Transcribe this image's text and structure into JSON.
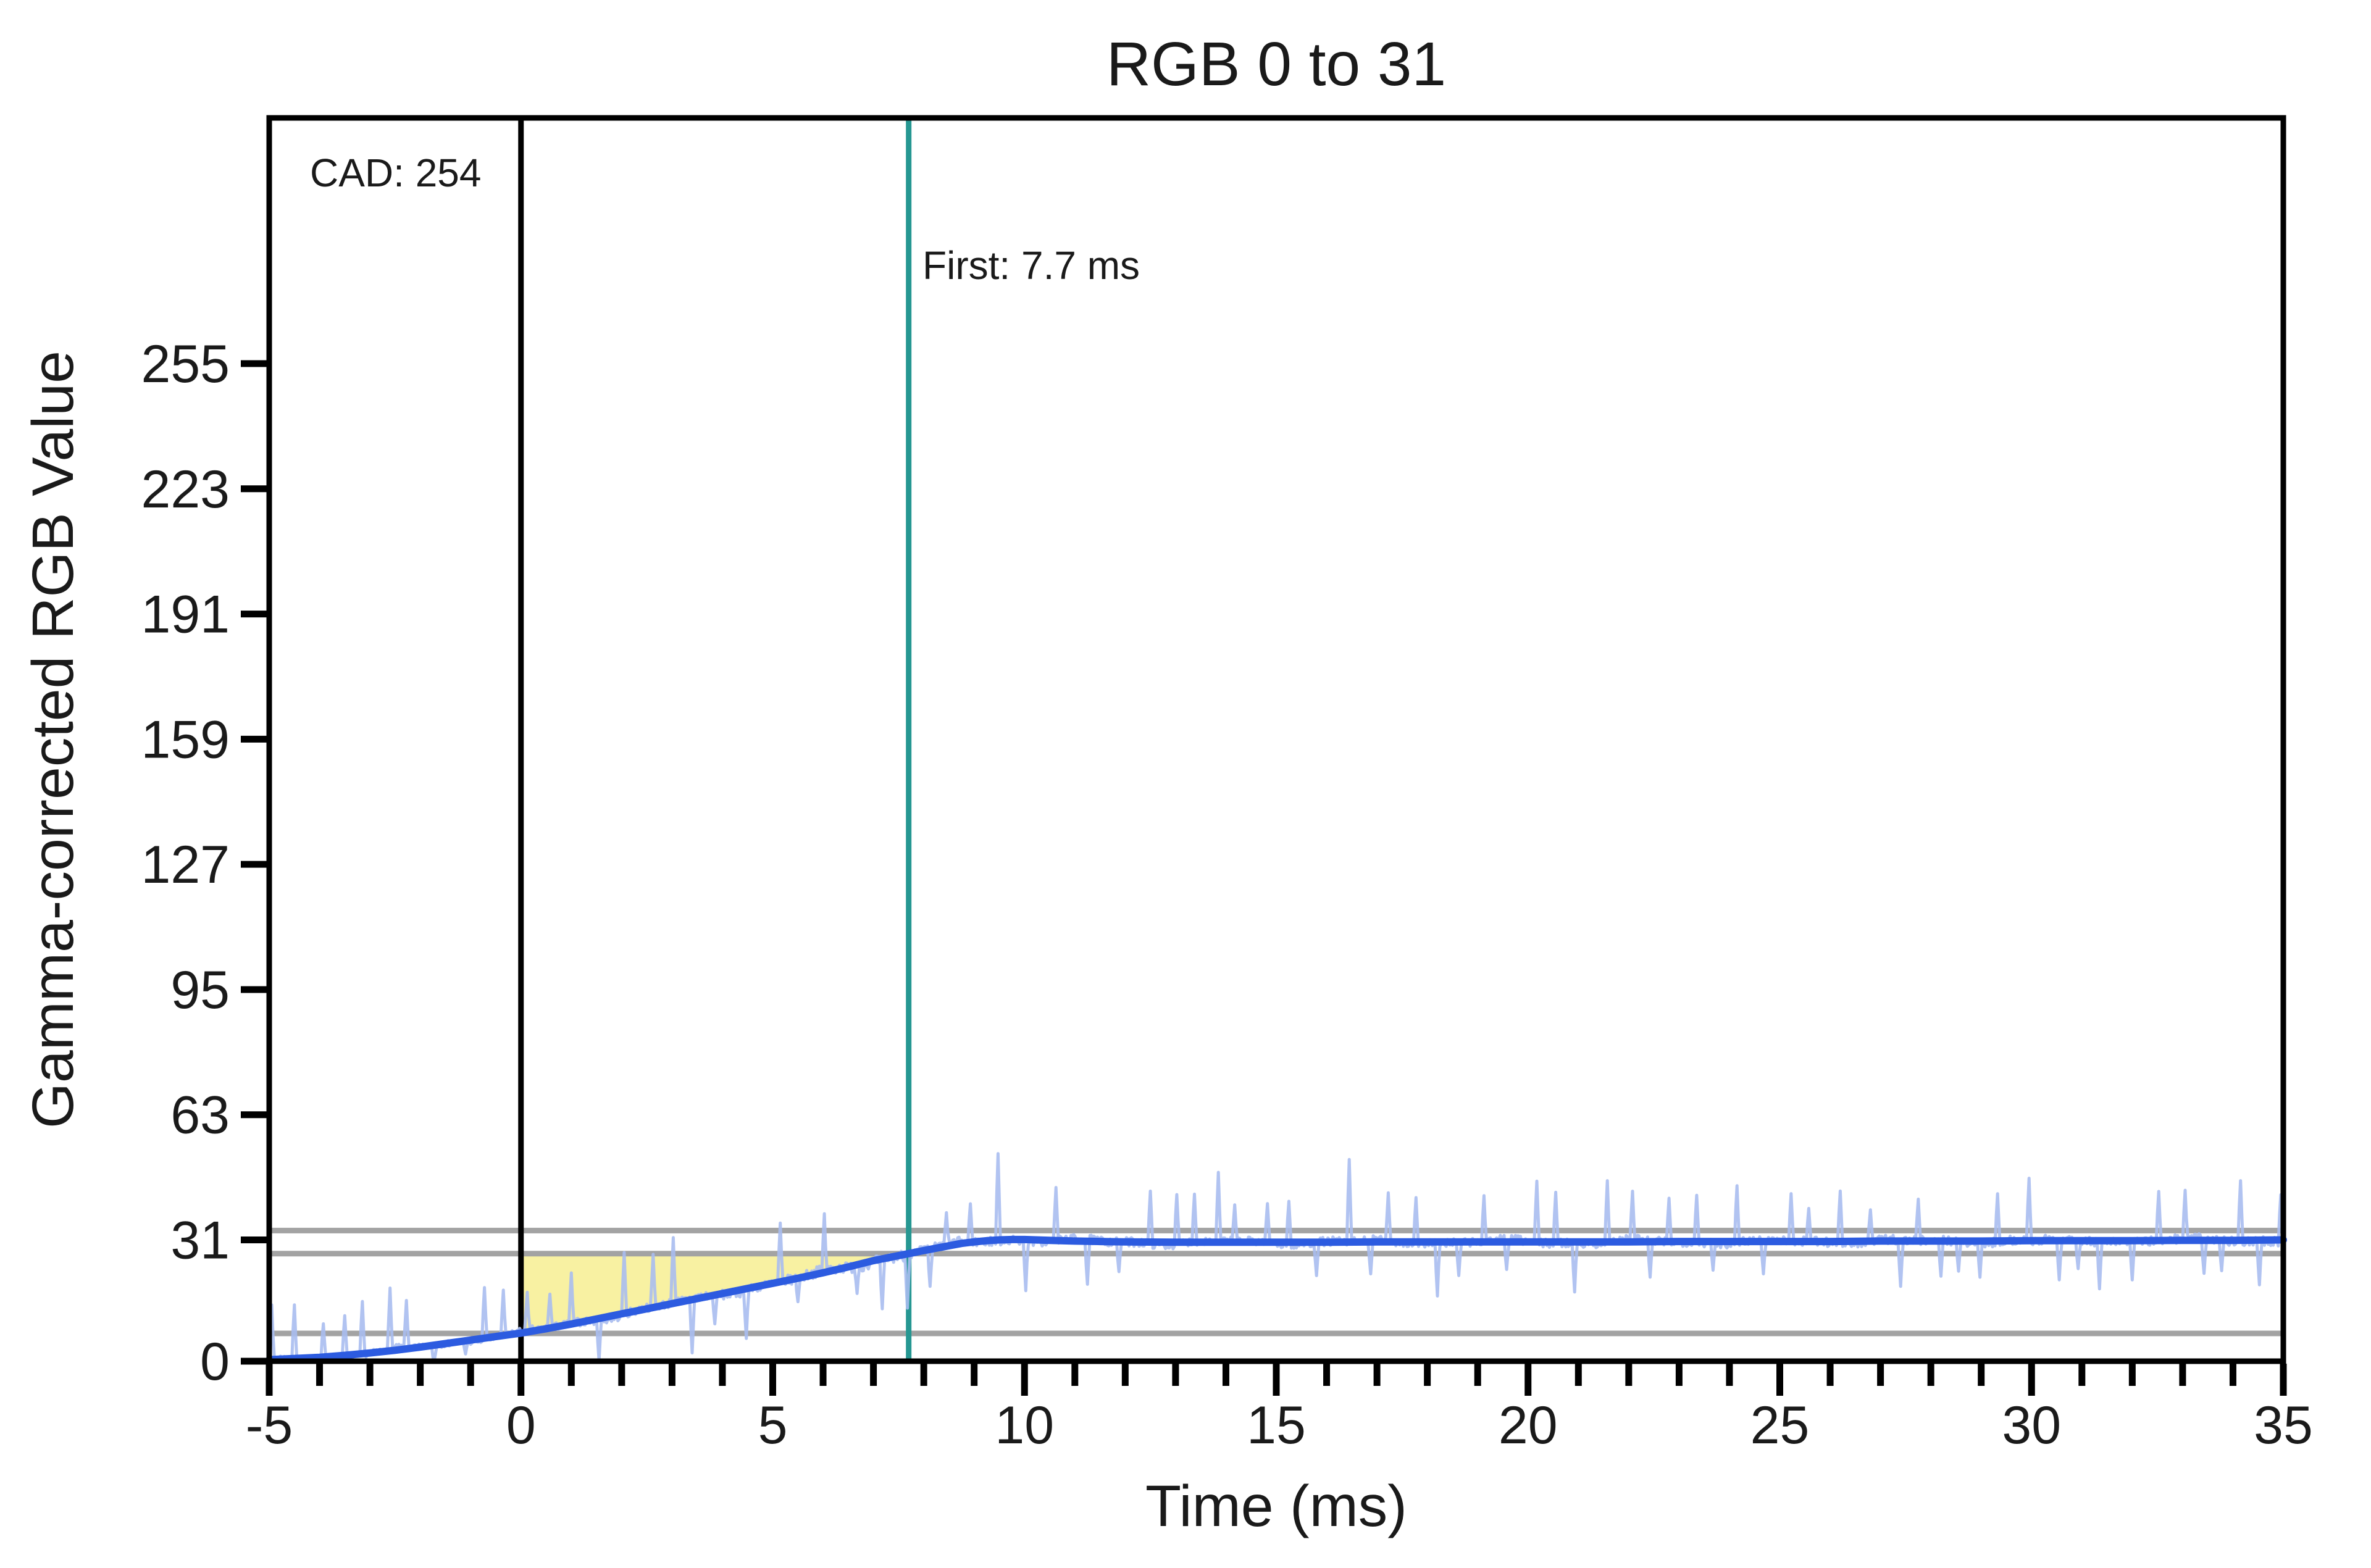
{
  "chart_data": {
    "type": "line",
    "title": "RGB 0 to 31",
    "xlabel": "Time (ms)",
    "ylabel": "Gamma-corrected RGB Value",
    "xlim": [
      -5,
      35
    ],
    "ylim": [
      0,
      317.8
    ],
    "grid": false,
    "legend": "none",
    "x_ticks": [
      -5,
      0,
      5,
      10,
      15,
      20,
      25,
      30,
      35
    ],
    "x_minor_step": 1,
    "y_ticks": [
      0,
      31,
      63,
      95,
      127,
      159,
      191,
      223,
      255
    ],
    "reference_lines": {
      "color": "#a3a3a3",
      "values": [
        33.4,
        27.5,
        7.1
      ]
    },
    "event_lines": [
      {
        "name": "stimulus-onset",
        "x": 0,
        "color": "#000000"
      },
      {
        "name": "first-response",
        "x": 7.7,
        "color": "#269792"
      }
    ],
    "annotations": [
      {
        "name": "cad",
        "text": "CAD: 254"
      },
      {
        "name": "first",
        "text": "First: 7.7 ms"
      }
    ],
    "shaded_region": {
      "color": "#f8f1a2",
      "from_x": 0,
      "to_x": 7.7,
      "top_value": 27.5,
      "bottom": "smoothed-curve"
    },
    "series": [
      {
        "name": "raw-sensor-data",
        "color": "#a9bdf0",
        "style": "noisy",
        "width": 5
      },
      {
        "name": "smoothed-response",
        "color": "#2c5be0",
        "width": 12,
        "keypoints": [
          [
            -5,
            0.4
          ],
          [
            -4.5,
            0.7
          ],
          [
            -4,
            1.0
          ],
          [
            -3.5,
            1.5
          ],
          [
            -3,
            2.1
          ],
          [
            -2.5,
            2.8
          ],
          [
            -2,
            3.6
          ],
          [
            -1.5,
            4.5
          ],
          [
            -1,
            5.4
          ],
          [
            -0.5,
            6.3
          ],
          [
            0,
            7.2
          ],
          [
            0.5,
            8.3
          ],
          [
            1,
            9.5
          ],
          [
            1.5,
            10.8
          ],
          [
            2,
            12.1
          ],
          [
            2.5,
            13.4
          ],
          [
            3,
            14.7
          ],
          [
            3.5,
            16.0
          ],
          [
            4,
            17.3
          ],
          [
            4.5,
            18.6
          ],
          [
            5,
            19.9
          ],
          [
            5.5,
            21.2
          ],
          [
            6,
            22.6
          ],
          [
            6.5,
            24.1
          ],
          [
            7,
            25.7
          ],
          [
            7.35,
            26.6
          ],
          [
            7.7,
            27.5
          ],
          [
            8,
            28.3
          ],
          [
            8.25,
            28.9
          ],
          [
            8.5,
            29.5
          ],
          [
            8.75,
            30.1
          ],
          [
            9,
            30.5
          ],
          [
            9.25,
            30.8
          ],
          [
            9.5,
            31.0
          ],
          [
            9.75,
            31.1
          ],
          [
            10,
            31.1
          ],
          [
            10.5,
            30.9
          ],
          [
            11,
            30.7
          ],
          [
            11.5,
            30.6
          ],
          [
            12,
            30.5
          ],
          [
            13,
            30.4
          ],
          [
            14,
            30.4
          ],
          [
            15,
            30.4
          ],
          [
            16,
            30.4
          ],
          [
            17,
            30.5
          ],
          [
            18,
            30.5
          ],
          [
            19,
            30.5
          ],
          [
            20,
            30.5
          ],
          [
            21,
            30.5
          ],
          [
            22,
            30.5
          ],
          [
            23,
            30.6
          ],
          [
            24,
            30.6
          ],
          [
            25,
            30.6
          ],
          [
            26,
            30.6
          ],
          [
            27,
            30.7
          ],
          [
            28,
            30.7
          ],
          [
            29,
            30.7
          ],
          [
            30,
            30.8
          ],
          [
            31,
            30.8
          ],
          [
            32,
            30.8
          ],
          [
            33,
            30.9
          ],
          [
            34,
            30.9
          ],
          [
            35,
            31.0
          ]
        ]
      }
    ],
    "noise": {
      "seed": 7,
      "sample_step_ms": 0.025,
      "jitter_pre": 0.75,
      "jitter_transition": 0.95,
      "jitter_post": 1.15,
      "spike_period_ms": 0.5,
      "spike_up_min": 8,
      "spike_up_max": 17,
      "spike_down_min": 6,
      "spike_down_max": 14,
      "pre_zero_down_min": 2.5,
      "pre_zero_down_max": 5.5,
      "clip_min": 0.05
    },
    "colors": {
      "background": "#ffffff",
      "axis": "#000000",
      "text": "#1a1a1a",
      "smoothed_line": "#2c5be0",
      "raw_line": "#a9bdf0",
      "tolerance_gray": "#a3a3a3",
      "first_response_teal": "#269792",
      "shaded_yellow": "#f8f1a2"
    }
  }
}
